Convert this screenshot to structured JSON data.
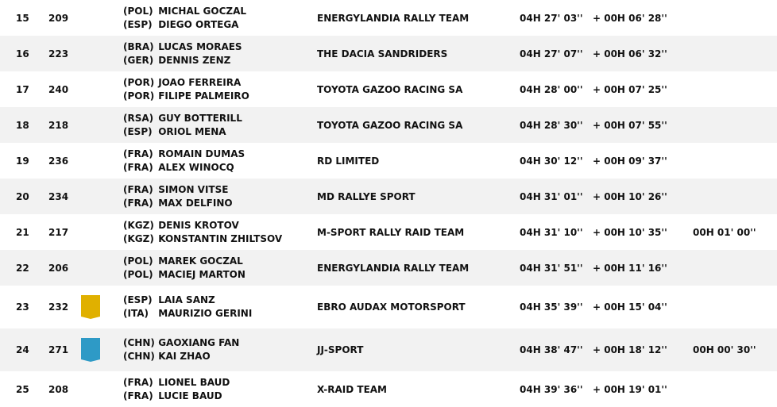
{
  "colors": {
    "row_alt": "#f2f2f2",
    "badge_yellow": "#e0b000",
    "badge_blue": "#2e9ac6"
  },
  "rows": [
    {
      "pos": "15",
      "num": "209",
      "badge": null,
      "crew": [
        {
          "nat": "(POL)",
          "name": "MICHAL GOCZAL"
        },
        {
          "nat": "(ESP)",
          "name": "DIEGO ORTEGA"
        }
      ],
      "team": "ENERGYLANDIA RALLY TEAM",
      "time": "04H 27' 03''",
      "gap": "+ 00H 06' 28''",
      "penalty": ""
    },
    {
      "pos": "16",
      "num": "223",
      "badge": null,
      "crew": [
        {
          "nat": "(BRA)",
          "name": "LUCAS MORAES"
        },
        {
          "nat": "(GER)",
          "name": "DENNIS ZENZ"
        }
      ],
      "team": "THE DACIA SANDRIDERS",
      "time": "04H 27' 07''",
      "gap": "+ 00H 06' 32''",
      "penalty": ""
    },
    {
      "pos": "17",
      "num": "240",
      "badge": null,
      "crew": [
        {
          "nat": "(POR)",
          "name": "JOAO FERREIRA"
        },
        {
          "nat": "(POR)",
          "name": "FILIPE PALMEIRO"
        }
      ],
      "team": "TOYOTA GAZOO RACING SA",
      "time": "04H 28' 00''",
      "gap": "+ 00H 07' 25''",
      "penalty": ""
    },
    {
      "pos": "18",
      "num": "218",
      "badge": null,
      "crew": [
        {
          "nat": "(RSA)",
          "name": "GUY BOTTERILL"
        },
        {
          "nat": "(ESP)",
          "name": "ORIOL MENA"
        }
      ],
      "team": "TOYOTA GAZOO RACING SA",
      "time": "04H 28' 30''",
      "gap": "+ 00H 07' 55''",
      "penalty": ""
    },
    {
      "pos": "19",
      "num": "236",
      "badge": null,
      "crew": [
        {
          "nat": "(FRA)",
          "name": "ROMAIN DUMAS"
        },
        {
          "nat": "(FRA)",
          "name": "ALEX WINOCQ"
        }
      ],
      "team": "RD LIMITED",
      "time": "04H 30' 12''",
      "gap": "+ 00H 09' 37''",
      "penalty": ""
    },
    {
      "pos": "20",
      "num": "234",
      "badge": null,
      "crew": [
        {
          "nat": "(FRA)",
          "name": "SIMON VITSE"
        },
        {
          "nat": "(FRA)",
          "name": "MAX DELFINO"
        }
      ],
      "team": "MD RALLYE SPORT",
      "time": "04H 31' 01''",
      "gap": "+ 00H 10' 26''",
      "penalty": ""
    },
    {
      "pos": "21",
      "num": "217",
      "badge": null,
      "crew": [
        {
          "nat": "(KGZ)",
          "name": "DENIS KROTOV"
        },
        {
          "nat": "(KGZ)",
          "name": "KONSTANTIN ZHILTSOV"
        }
      ],
      "team": "M-SPORT RALLY RAID TEAM",
      "time": "04H 31' 10''",
      "gap": "+ 00H 10' 35''",
      "penalty": "00H 01' 00''"
    },
    {
      "pos": "22",
      "num": "206",
      "badge": null,
      "crew": [
        {
          "nat": "(POL)",
          "name": "MAREK GOCZAL"
        },
        {
          "nat": "(POL)",
          "name": "MACIEJ MARTON"
        }
      ],
      "team": "ENERGYLANDIA RALLY TEAM",
      "time": "04H 31' 51''",
      "gap": "+ 00H 11' 16''",
      "penalty": ""
    },
    {
      "pos": "23",
      "num": "232",
      "badge": "yellow",
      "crew": [
        {
          "nat": "(ESP)",
          "name": "LAIA SANZ"
        },
        {
          "nat": "(ITA)",
          "name": "MAURIZIO GERINI"
        }
      ],
      "team": "EBRO AUDAX MOTORSPORT",
      "time": "04H 35' 39''",
      "gap": "+ 00H 15' 04''",
      "penalty": ""
    },
    {
      "pos": "24",
      "num": "271",
      "badge": "blue",
      "crew": [
        {
          "nat": "(CHN)",
          "name": "GAOXIANG FAN"
        },
        {
          "nat": "(CHN)",
          "name": "KAI ZHAO"
        }
      ],
      "team": "JJ-SPORT",
      "time": "04H 38' 47''",
      "gap": "+ 00H 18' 12''",
      "penalty": "00H 00' 30''"
    },
    {
      "pos": "25",
      "num": "208",
      "badge": null,
      "crew": [
        {
          "nat": "(FRA)",
          "name": "LIONEL BAUD"
        },
        {
          "nat": "(FRA)",
          "name": "LUCIE BAUD"
        }
      ],
      "team": "X-RAID TEAM",
      "time": "04H 39' 36''",
      "gap": "+ 00H 19' 01''",
      "penalty": ""
    }
  ]
}
